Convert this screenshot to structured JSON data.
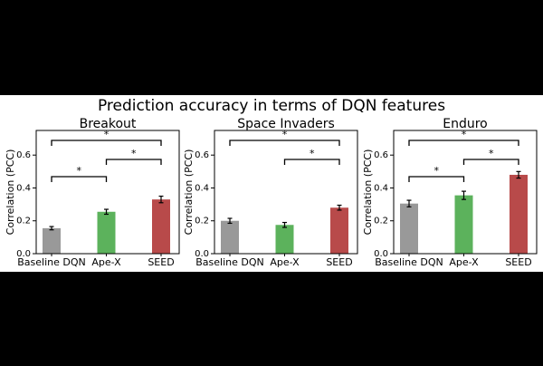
{
  "title": "Prediction accuracy in terms of DQN features",
  "chart_data": [
    {
      "type": "bar",
      "title": "Breakout",
      "ylabel": "Correlation (PCC)",
      "categories": [
        "Baseline DQN",
        "Ape-X",
        "SEED"
      ],
      "values": [
        0.155,
        0.255,
        0.33
      ],
      "errors": [
        0.01,
        0.015,
        0.02
      ],
      "colors": [
        "#999999",
        "#5cb25c",
        "#b84a4a"
      ],
      "ylim": [
        0,
        0.75
      ],
      "yticks": [
        {
          "value": 0,
          "label": "0.0"
        },
        0.2,
        0.4,
        0.6
      ],
      "significance": [
        {
          "between": [
            "Baseline DQN",
            "SEED"
          ],
          "label": "*"
        },
        {
          "between": [
            "Ape-X",
            "SEED"
          ],
          "label": "*"
        },
        {
          "between": [
            "Baseline DQN",
            "Ape-X"
          ],
          "label": "*"
        }
      ]
    },
    {
      "type": "bar",
      "title": "Space Invaders",
      "ylabel": "Correlation (PCC)",
      "categories": [
        "Baseline DQN",
        "Ape-X",
        "SEED"
      ],
      "values": [
        0.2,
        0.175,
        0.28
      ],
      "errors": [
        0.015,
        0.015,
        0.015
      ],
      "colors": [
        "#999999",
        "#5cb25c",
        "#b84a4a"
      ],
      "ylim": [
        0,
        0.75
      ],
      "yticks": [
        {
          "value": 0,
          "label": "0.0"
        },
        0.2,
        0.4,
        0.6
      ],
      "significance": [
        {
          "between": [
            "Baseline DQN",
            "SEED"
          ],
          "label": "*"
        },
        {
          "between": [
            "Ape-X",
            "SEED"
          ],
          "label": "*"
        }
      ]
    },
    {
      "type": "bar",
      "title": "Enduro",
      "ylabel": "Correlation (PCC)",
      "categories": [
        "Baseline DQN",
        "Ape-X",
        "SEED"
      ],
      "values": [
        0.305,
        0.355,
        0.48
      ],
      "errors": [
        0.02,
        0.025,
        0.02
      ],
      "colors": [
        "#999999",
        "#5cb25c",
        "#b84a4a"
      ],
      "ylim": [
        0,
        0.75
      ],
      "yticks": [
        {
          "value": 0,
          "label": "0.0"
        },
        0.2,
        0.4,
        0.6
      ],
      "significance": [
        {
          "between": [
            "Baseline DQN",
            "SEED"
          ],
          "label": "*"
        },
        {
          "between": [
            "Ape-X",
            "SEED"
          ],
          "label": "*"
        },
        {
          "between": [
            "Baseline DQN",
            "Ape-X"
          ],
          "label": "*"
        }
      ]
    }
  ]
}
